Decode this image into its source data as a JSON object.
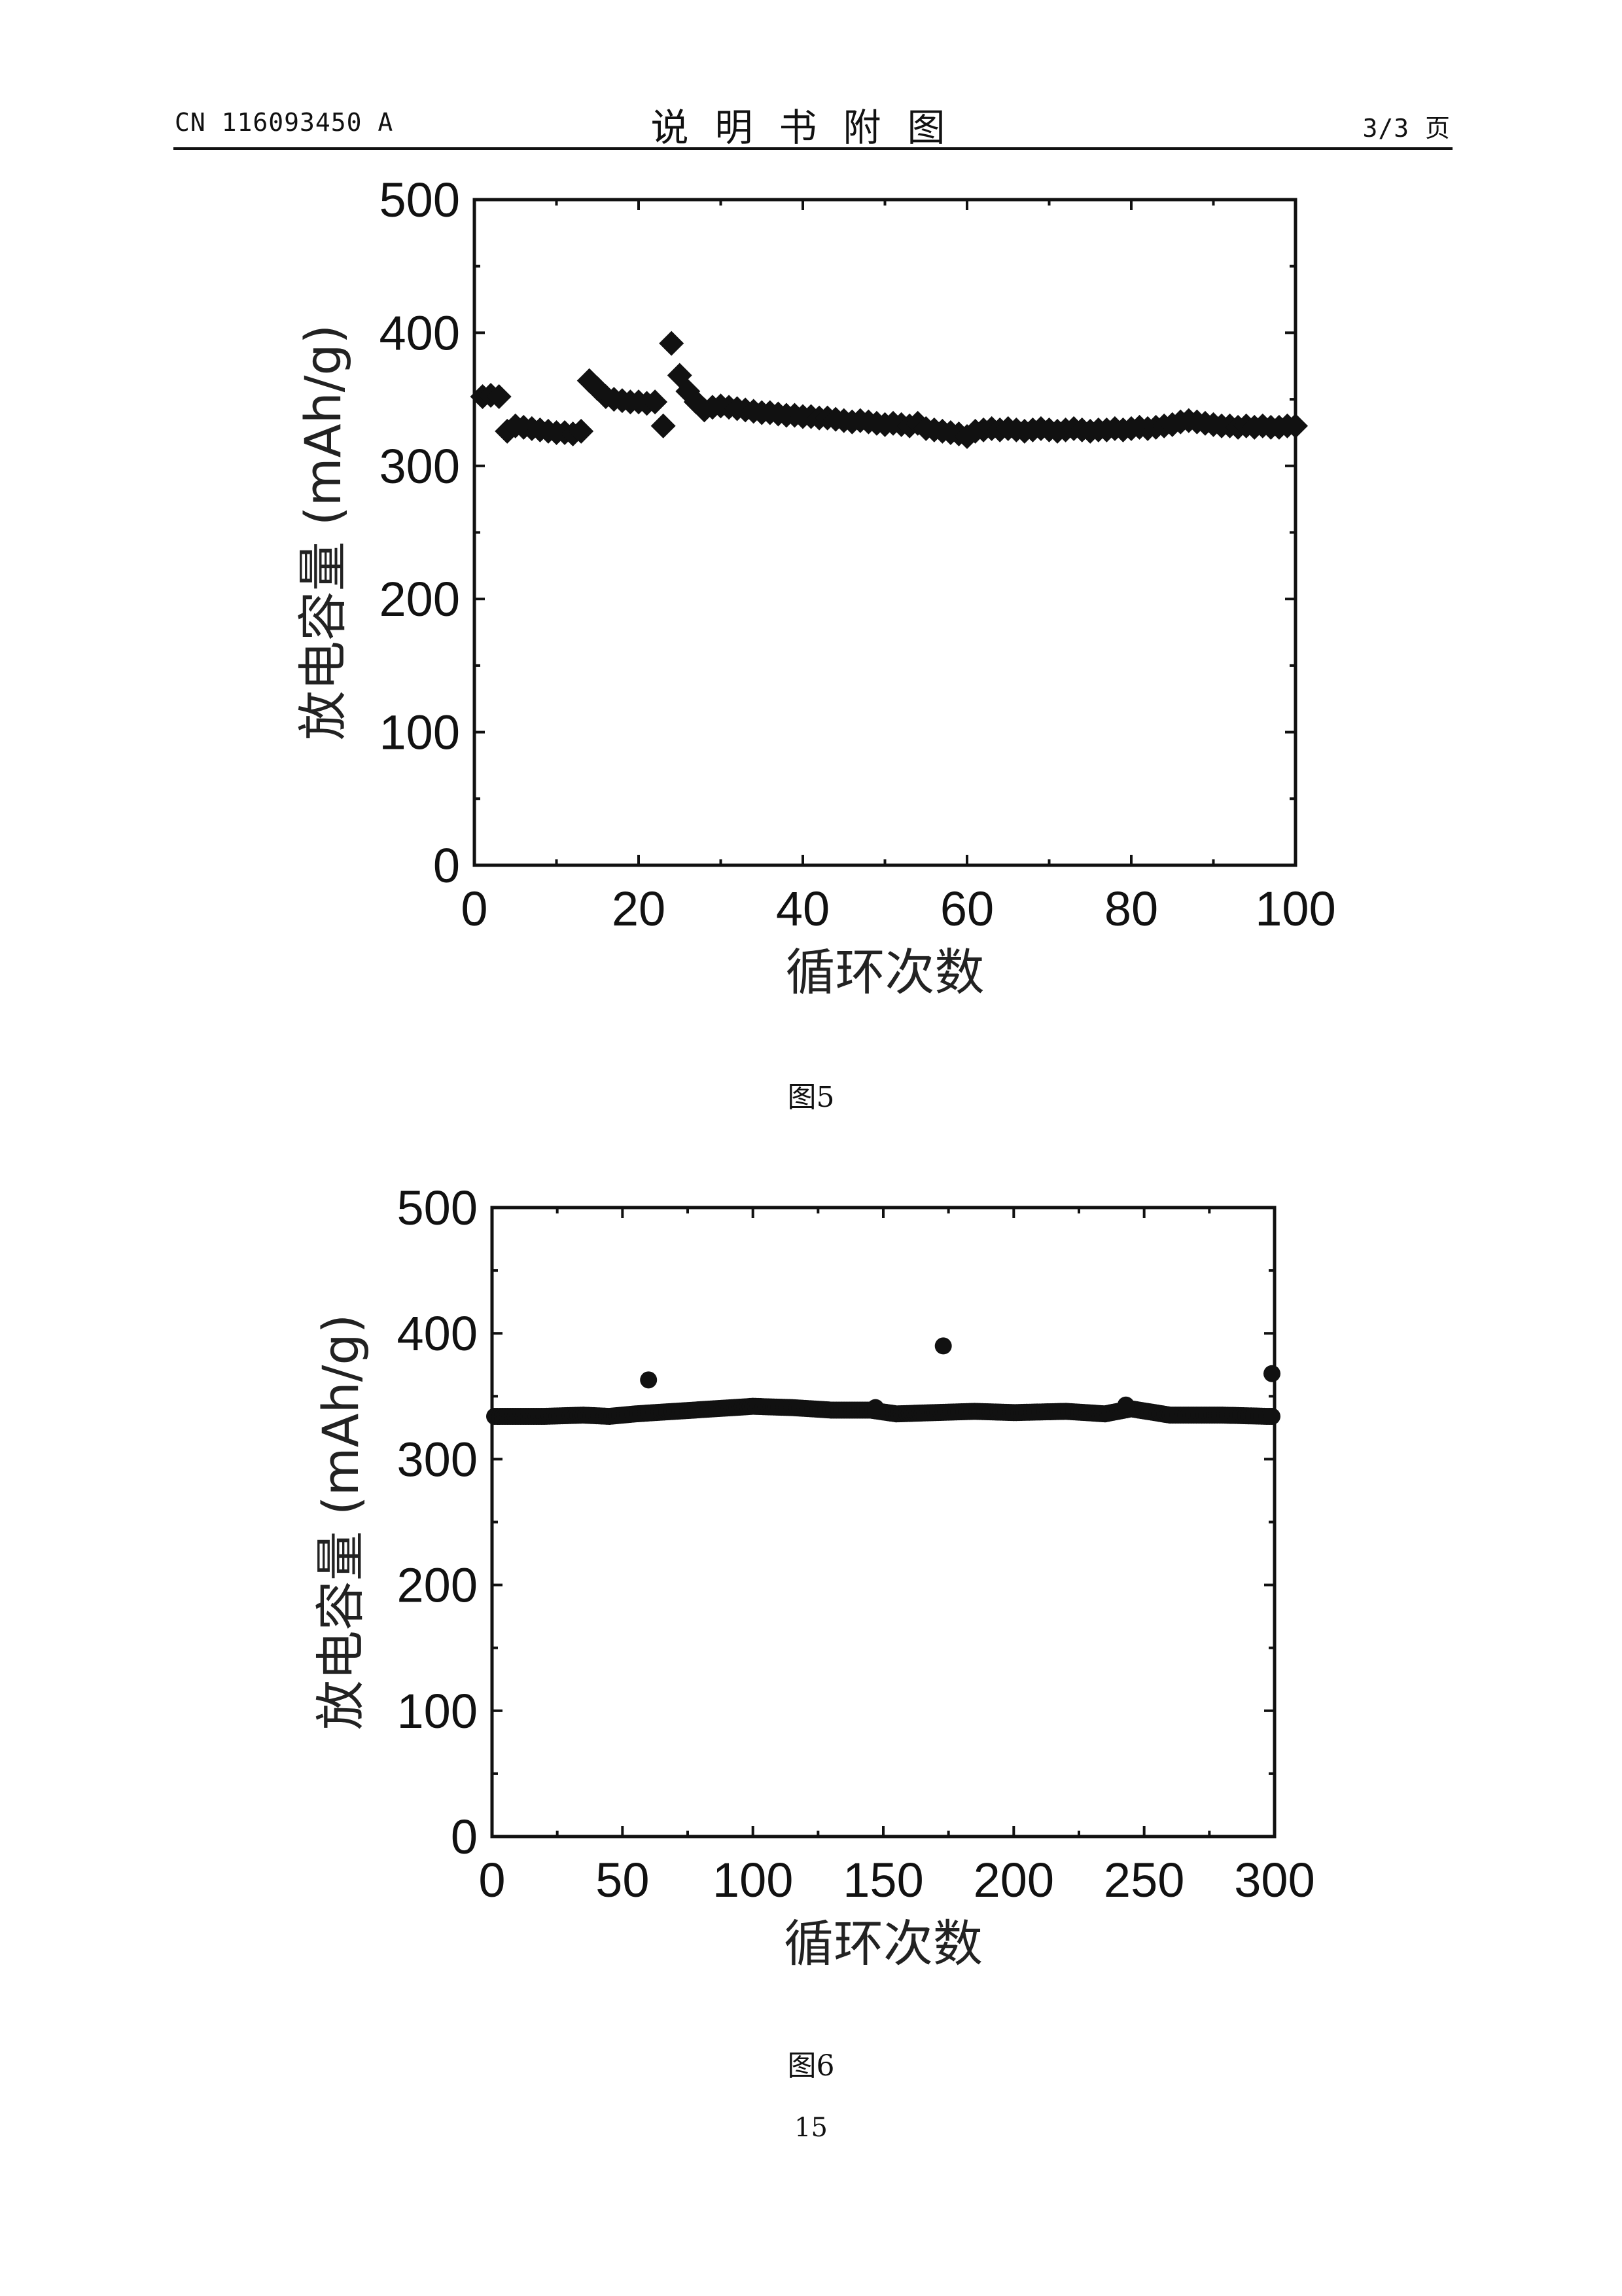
{
  "header": {
    "doc_id": "CN 116093450 A",
    "title": "说明书附图",
    "page_info": "3/3 页"
  },
  "figures": [
    {
      "caption": "图5"
    },
    {
      "caption": "图6"
    }
  ],
  "page_number": "15",
  "chart_data": [
    {
      "type": "scatter",
      "marker": "diamond",
      "xlabel": "循环次数",
      "ylabel": "放电容量 (mAh/g)",
      "xlim": [
        0,
        100
      ],
      "ylim": [
        0,
        500
      ],
      "xticks": [
        0,
        20,
        40,
        60,
        80,
        100
      ],
      "yticks": [
        0,
        100,
        200,
        300,
        400,
        500
      ],
      "x": [
        1,
        2,
        3,
        4,
        5,
        6,
        7,
        8,
        9,
        10,
        11,
        12,
        13,
        14,
        15,
        16,
        17,
        18,
        19,
        20,
        21,
        22,
        23,
        24,
        25,
        26,
        27,
        28,
        29,
        30,
        31,
        32,
        33,
        34,
        35,
        36,
        37,
        38,
        39,
        40,
        41,
        42,
        43,
        44,
        45,
        46,
        47,
        48,
        49,
        50,
        51,
        52,
        53,
        54,
        55,
        56,
        57,
        58,
        59,
        60,
        61,
        62,
        63,
        64,
        65,
        66,
        67,
        68,
        69,
        70,
        71,
        72,
        73,
        74,
        75,
        76,
        77,
        78,
        79,
        80,
        81,
        82,
        83,
        84,
        85,
        86,
        87,
        88,
        89,
        90,
        91,
        92,
        93,
        94,
        95,
        96,
        97,
        98,
        99,
        100
      ],
      "y": [
        352,
        353,
        352,
        326,
        330,
        329,
        328,
        327,
        326,
        325,
        325,
        324,
        326,
        364,
        358,
        352,
        350,
        349,
        348,
        348,
        347,
        348,
        330,
        392,
        368,
        356,
        348,
        342,
        344,
        345,
        344,
        343,
        342,
        341,
        340,
        340,
        339,
        338,
        338,
        337,
        337,
        336,
        336,
        335,
        334,
        333,
        334,
        333,
        332,
        331,
        332,
        331,
        330,
        332,
        328,
        327,
        326,
        325,
        324,
        322,
        326,
        327,
        328,
        327,
        328,
        327,
        326,
        327,
        328,
        327,
        326,
        327,
        328,
        327,
        326,
        327,
        327,
        328,
        327,
        328,
        329,
        328,
        329,
        330,
        331,
        333,
        334,
        333,
        332,
        331,
        330,
        330,
        329,
        330,
        329,
        330,
        329,
        329,
        330,
        330
      ]
    },
    {
      "type": "scatter",
      "marker": "circle",
      "xlabel": "循环次数",
      "ylabel": "放电容量 (mAh/g)",
      "xlim": [
        0,
        300
      ],
      "ylim": [
        0,
        500
      ],
      "xticks": [
        0,
        50,
        100,
        150,
        200,
        250,
        300
      ],
      "yticks": [
        0,
        100,
        200,
        300,
        400,
        500
      ],
      "baseline": [
        [
          2,
          334
        ],
        [
          20,
          334
        ],
        [
          35,
          335
        ],
        [
          45,
          334
        ],
        [
          55,
          336
        ],
        [
          70,
          338
        ],
        [
          85,
          340
        ],
        [
          100,
          342
        ],
        [
          115,
          341
        ],
        [
          130,
          339
        ],
        [
          145,
          339
        ],
        [
          155,
          336
        ],
        [
          170,
          337
        ],
        [
          185,
          338
        ],
        [
          200,
          337
        ],
        [
          220,
          338
        ],
        [
          235,
          336
        ],
        [
          245,
          340
        ],
        [
          260,
          335
        ],
        [
          280,
          335
        ],
        [
          298,
          334
        ]
      ],
      "outliers": [
        [
          60,
          363
        ],
        [
          173,
          390
        ],
        [
          299,
          368
        ],
        [
          243,
          343
        ],
        [
          147,
          341
        ]
      ]
    }
  ]
}
